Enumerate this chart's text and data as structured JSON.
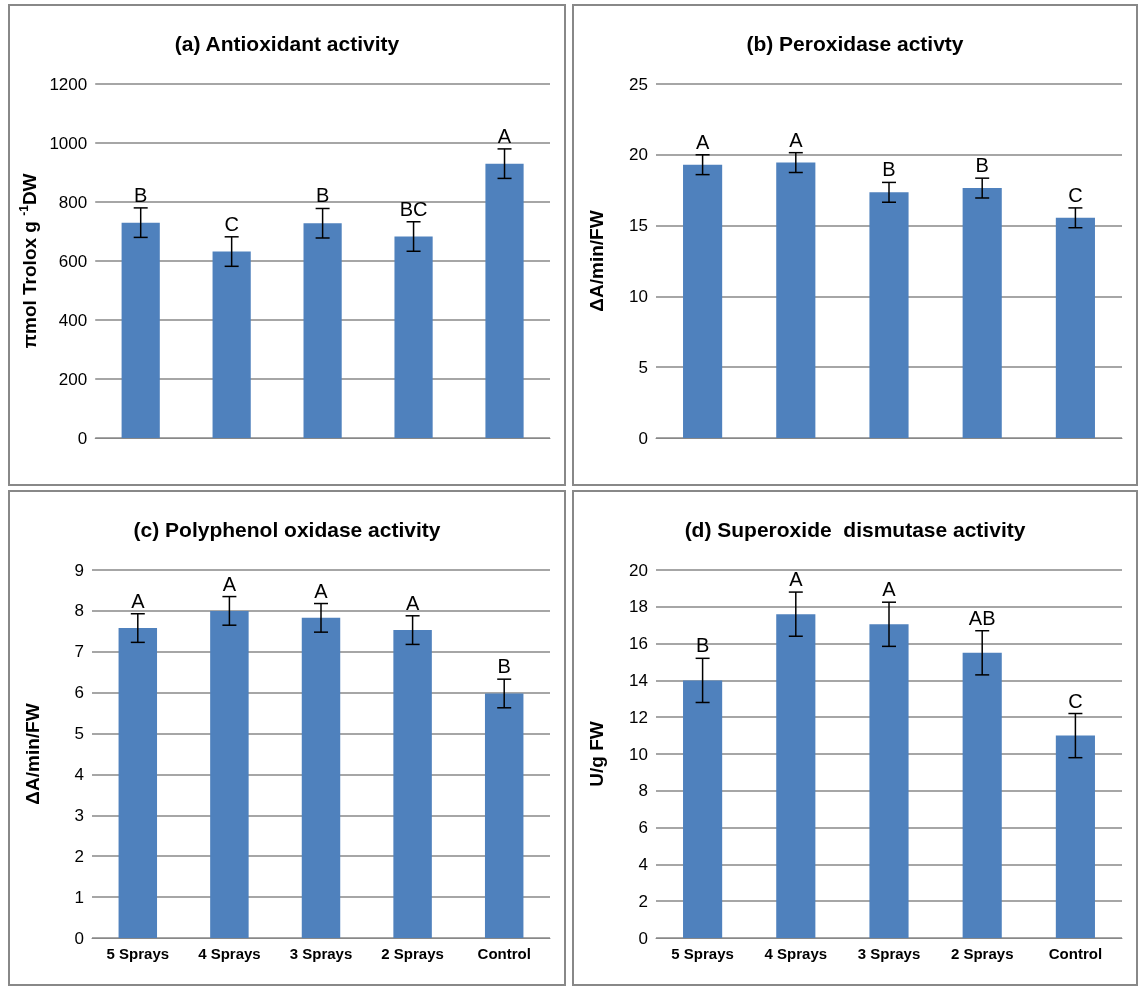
{
  "chart_data": [
    {
      "type": "bar",
      "title": "(a) Antioxidant activity",
      "ylabel": "πmol Trolox g $^{-1}$DW",
      "categories": [
        null,
        null,
        null,
        null,
        null
      ],
      "values": [
        730,
        632,
        728,
        683,
        930
      ],
      "errors": [
        50,
        50,
        50,
        50,
        50
      ],
      "value_labels": [
        "B",
        "C",
        "B",
        "BC",
        "A"
      ],
      "color": "#4f81bd",
      "ylim": [
        0,
        1200
      ],
      "yticks": [
        0,
        200,
        400,
        600,
        800,
        1000,
        1200
      ],
      "grid": "y"
    },
    {
      "type": "bar",
      "title": "(b) Peroxidase activty",
      "ylabel": "ΔA/min/FW",
      "categories": [
        null,
        null,
        null,
        null,
        null
      ],
      "values": [
        19.3,
        19.45,
        17.35,
        17.65,
        15.55
      ],
      "errors": [
        0.7,
        0.7,
        0.7,
        0.7,
        0.7
      ],
      "value_labels": [
        "A",
        "A",
        "B",
        "B",
        "C"
      ],
      "color": "#4f81bd",
      "ylim": [
        0,
        25
      ],
      "yticks": [
        0,
        5,
        10,
        15,
        20,
        25
      ],
      "grid": "y"
    },
    {
      "type": "bar",
      "title": "(c) Polyphenol oxidase activity",
      "ylabel": "ΔA/min/FW",
      "categories": [
        "5 Sprays",
        "4 Sprays",
        "3 Sprays",
        "2 Sprays",
        "Control"
      ],
      "values": [
        7.58,
        8.0,
        7.83,
        7.53,
        5.98
      ],
      "errors": [
        0.35,
        0.35,
        0.35,
        0.35,
        0.35
      ],
      "value_labels": [
        "A",
        "A",
        "A",
        "A",
        "B"
      ],
      "color": "#4f81bd",
      "ylim": [
        0,
        9
      ],
      "yticks": [
        0,
        1,
        2,
        3,
        4,
        5,
        6,
        7,
        8,
        9
      ],
      "grid": "y"
    },
    {
      "type": "bar",
      "title": "(d) Superoxide  dismutase activity",
      "ylabel": "U/g FW",
      "categories": [
        "5 Sprays",
        "4 Sprays",
        "3 Sprays",
        "2 Sprays",
        "Control"
      ],
      "values": [
        14,
        17.6,
        17.05,
        15.5,
        11
      ],
      "errors": [
        1.2,
        1.2,
        1.2,
        1.2,
        1.2
      ],
      "value_labels": [
        "B",
        "A",
        "A",
        "AB",
        "C"
      ],
      "color": "#4f81bd",
      "ylim": [
        0,
        20
      ],
      "yticks": [
        0,
        2,
        4,
        6,
        8,
        10,
        12,
        14,
        16,
        18,
        20
      ],
      "grid": "y"
    }
  ]
}
